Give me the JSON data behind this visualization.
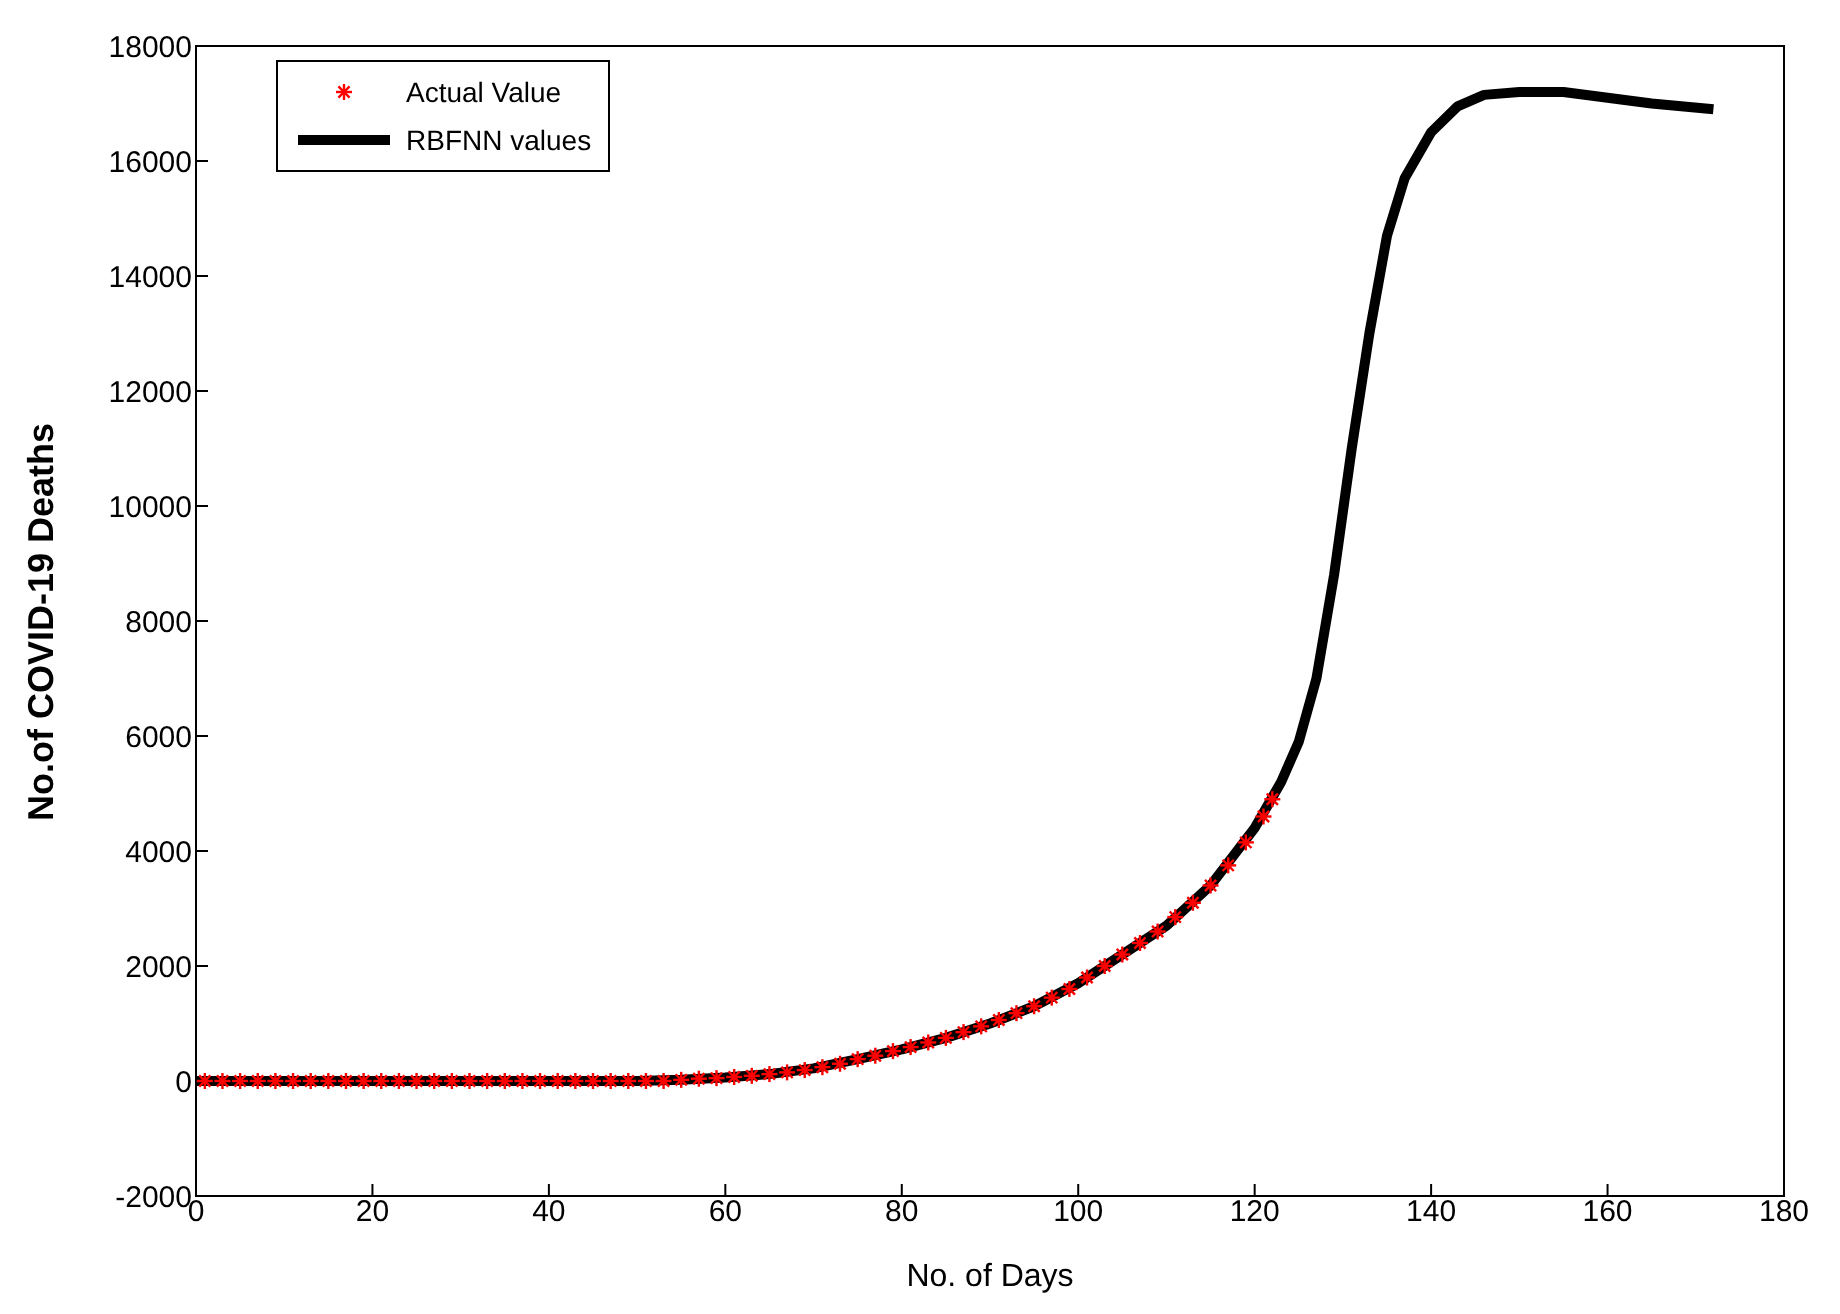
{
  "chart_data": {
    "type": "line",
    "xlabel": "No. of Days",
    "ylabel": "No.of COVID-19 Deaths",
    "xlim": [
      0,
      180
    ],
    "xticks": [
      0,
      20,
      40,
      60,
      80,
      100,
      120,
      140,
      160,
      180
    ],
    "ylim": [
      -2000,
      18000
    ],
    "yticks": [
      -2000,
      0,
      2000,
      4000,
      6000,
      8000,
      10000,
      12000,
      14000,
      16000,
      18000
    ],
    "grid": false,
    "legend": "top left",
    "series": [
      {
        "name": "Actual Value",
        "type": "scatter",
        "marker": "cross",
        "color": "#ff0000",
        "x": [
          1,
          3,
          5,
          7,
          9,
          11,
          13,
          15,
          17,
          19,
          21,
          23,
          25,
          27,
          29,
          31,
          33,
          35,
          37,
          39,
          41,
          43,
          45,
          47,
          49,
          51,
          53,
          55,
          57,
          59,
          61,
          63,
          65,
          67,
          69,
          71,
          73,
          75,
          77,
          79,
          81,
          83,
          85,
          87,
          89,
          91,
          93,
          95,
          97,
          99,
          101,
          103,
          105,
          107,
          109,
          111,
          113,
          115,
          117,
          119,
          121,
          122
        ],
        "values": [
          0,
          0,
          0,
          0,
          0,
          0,
          0,
          0,
          0,
          0,
          0,
          0,
          0,
          0,
          0,
          0,
          0,
          0,
          0,
          0,
          0,
          0,
          0,
          0,
          0,
          0,
          0,
          20,
          40,
          50,
          70,
          90,
          120,
          150,
          190,
          240,
          300,
          380,
          440,
          520,
          590,
          670,
          750,
          850,
          950,
          1060,
          1180,
          1300,
          1450,
          1600,
          1800,
          2000,
          2200,
          2400,
          2600,
          2850,
          3100,
          3400,
          3750,
          4150,
          4600,
          4900
        ]
      },
      {
        "name": "RBFNN values",
        "marker": "none",
        "color": "#000000",
        "x": [
          0,
          50,
          55,
          60,
          65,
          70,
          75,
          80,
          85,
          90,
          95,
          100,
          105,
          110,
          115,
          120,
          123,
          125,
          127,
          129,
          131,
          133,
          135,
          137,
          140,
          143,
          146,
          150,
          155,
          160,
          165,
          172
        ],
        "values": [
          0,
          0,
          20,
          60,
          120,
          220,
          380,
          550,
          750,
          1000,
          1300,
          1700,
          2200,
          2700,
          3400,
          4400,
          5200,
          5900,
          7000,
          8800,
          11000,
          13000,
          14700,
          15700,
          16500,
          16950,
          17150,
          17200,
          17200,
          17100,
          17000,
          16900
        ]
      }
    ]
  }
}
